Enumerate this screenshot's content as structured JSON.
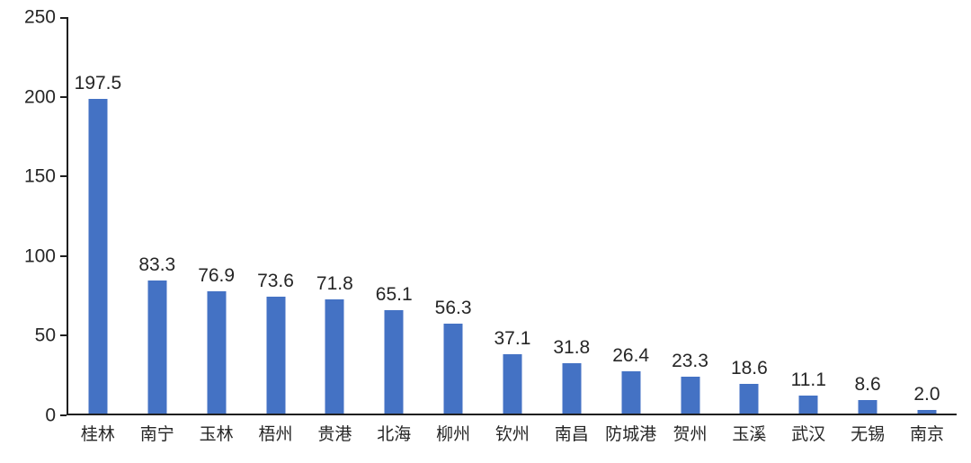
{
  "chart": {
    "bar_color": "#4472C4",
    "axis_color": "#1f1f1f",
    "text_color": "#262626",
    "background_color": "#ffffff"
  },
  "chart_data": {
    "type": "bar",
    "categories": [
      "桂林",
      "南宁",
      "玉林",
      "梧州",
      "贵港",
      "北海",
      "柳州",
      "钦州",
      "南昌",
      "防城港",
      "贺州",
      "玉溪",
      "武汉",
      "无锡",
      "南京"
    ],
    "values": [
      197.5,
      83.3,
      76.9,
      73.6,
      71.8,
      65.1,
      56.3,
      37.1,
      31.8,
      26.4,
      23.3,
      18.6,
      11.1,
      8.6,
      2.0
    ],
    "data_labels": [
      "197.5",
      "83.3",
      "76.9",
      "73.6",
      "71.8",
      "65.1",
      "56.3",
      "37.1",
      "31.8",
      "26.4",
      "23.3",
      "18.6",
      "11.1",
      "8.6",
      "2.0"
    ],
    "title": "",
    "xlabel": "",
    "ylabel": "",
    "ylim": [
      0,
      250
    ],
    "yticks": [
      0,
      50,
      100,
      150,
      200,
      250
    ],
    "grid": false,
    "legend": false,
    "data_labels_shown": true,
    "tick_marks": "outside"
  }
}
